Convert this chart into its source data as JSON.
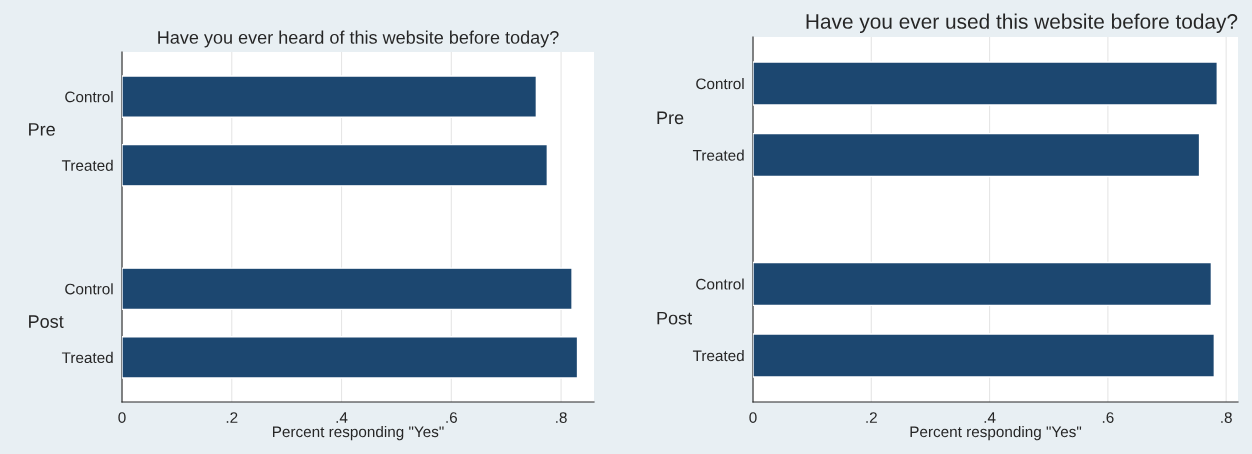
{
  "chart_data": [
    {
      "type": "bar",
      "orientation": "horizontal",
      "title": "Have you ever heard of this website before today?",
      "xlabel": "Percent responding \"Yes\"",
      "categories": [
        "Control",
        "Treated",
        "Control",
        "Treated"
      ],
      "annotations": [
        "Pre",
        "Post"
      ],
      "values": [
        0.755,
        0.775,
        0.82,
        0.83
      ],
      "color": "#1c4770",
      "xlim": [
        0,
        0.86
      ],
      "xticks": [
        {
          "value": 0,
          "label": "0"
        },
        {
          "value": 0.2,
          "label": ".2"
        },
        {
          "value": 0.4,
          "label": ".4"
        },
        {
          "value": 0.6,
          "label": ".6"
        },
        {
          "value": 0.8,
          "label": ".8"
        }
      ],
      "grid": "x",
      "legend": false
    },
    {
      "type": "bar",
      "orientation": "horizontal",
      "title": "Have you ever used this website before today?",
      "xlabel": "Percent responding \"Yes\"",
      "categories": [
        "Control",
        "Treated",
        "Control",
        "Treated"
      ],
      "annotations": [
        "Pre",
        "Post"
      ],
      "values": [
        0.785,
        0.755,
        0.775,
        0.78
      ],
      "color": "#1c4770",
      "xlim": [
        0,
        0.82
      ],
      "xticks": [
        {
          "value": 0,
          "label": "0"
        },
        {
          "value": 0.2,
          "label": ".2"
        },
        {
          "value": 0.4,
          "label": ".4"
        },
        {
          "value": 0.6,
          "label": ".6"
        },
        {
          "value": 0.8,
          "label": ".8"
        }
      ],
      "grid": "x",
      "legend": false
    }
  ]
}
